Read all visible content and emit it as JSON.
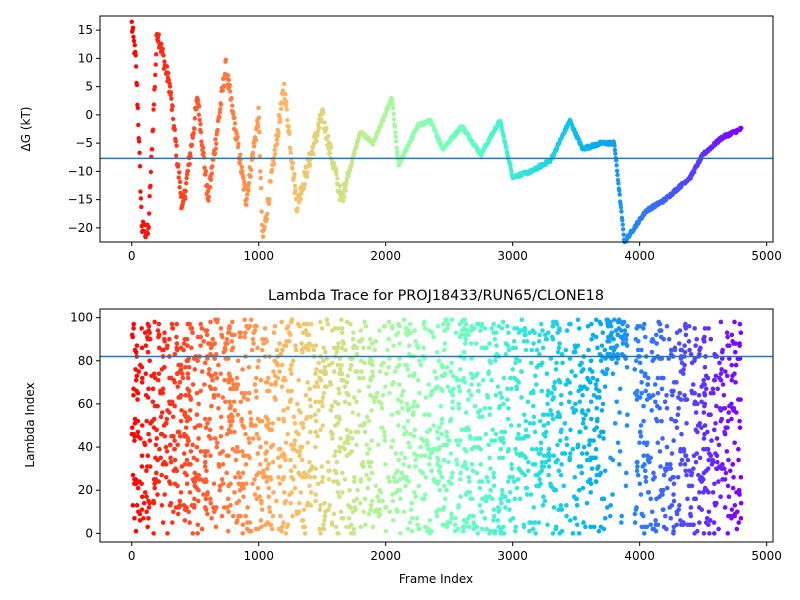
{
  "chart_data": [
    {
      "type": "scatter",
      "title": "",
      "xlabel": "",
      "ylabel": "ΔG (kT)",
      "xlim": [
        -250,
        5050
      ],
      "ylim": [
        -22.5,
        17.5
      ],
      "xticks": [
        "0",
        "1000",
        "2000",
        "3000",
        "4000",
        "5000"
      ],
      "yticks": [
        "−20",
        "−15",
        "−10",
        "−5",
        "0",
        "5",
        "10",
        "15"
      ],
      "hline": -7.7,
      "hline_color": "#1f77b4",
      "colormap": "rainbow (red at early frames → violet at late frames)",
      "grid": false,
      "series_points_approx": [
        {
          "x": 0,
          "y": 16
        },
        {
          "x": 30,
          "y": 10
        },
        {
          "x": 50,
          "y": 0
        },
        {
          "x": 80,
          "y": -20
        },
        {
          "x": 130,
          "y": -21
        },
        {
          "x": 200,
          "y": 15
        },
        {
          "x": 300,
          "y": 5
        },
        {
          "x": 400,
          "y": -17
        },
        {
          "x": 520,
          "y": 3
        },
        {
          "x": 600,
          "y": -15
        },
        {
          "x": 740,
          "y": 8.5
        },
        {
          "x": 900,
          "y": -15
        },
        {
          "x": 1000,
          "y": 0
        },
        {
          "x": 1030,
          "y": -22.5
        },
        {
          "x": 1200,
          "y": 5
        },
        {
          "x": 1300,
          "y": -16
        },
        {
          "x": 1500,
          "y": 0
        },
        {
          "x": 1650,
          "y": -15
        },
        {
          "x": 1800,
          "y": -3
        },
        {
          "x": 1900,
          "y": -5
        },
        {
          "x": 2050,
          "y": 3
        },
        {
          "x": 2100,
          "y": -9
        },
        {
          "x": 2250,
          "y": -2
        },
        {
          "x": 2350,
          "y": -1
        },
        {
          "x": 2450,
          "y": -6
        },
        {
          "x": 2600,
          "y": -2
        },
        {
          "x": 2750,
          "y": -7
        },
        {
          "x": 2900,
          "y": -1
        },
        {
          "x": 3000,
          "y": -11
        },
        {
          "x": 3150,
          "y": -10
        },
        {
          "x": 3300,
          "y": -8
        },
        {
          "x": 3450,
          "y": -1
        },
        {
          "x": 3550,
          "y": -6
        },
        {
          "x": 3700,
          "y": -5
        },
        {
          "x": 3800,
          "y": -5
        },
        {
          "x": 3880,
          "y": -22.5
        },
        {
          "x": 4050,
          "y": -17
        },
        {
          "x": 4200,
          "y": -15
        },
        {
          "x": 4400,
          "y": -11
        },
        {
          "x": 4500,
          "y": -7
        },
        {
          "x": 4650,
          "y": -4
        },
        {
          "x": 4800,
          "y": -2.5
        }
      ]
    },
    {
      "type": "scatter",
      "title": "Lambda Trace for PROJ18433/RUN65/CLONE18",
      "xlabel": "Frame Index",
      "ylabel": "Lambda Index",
      "xlim": [
        -250,
        5050
      ],
      "ylim": [
        -4,
        104
      ],
      "xticks": [
        "0",
        "1000",
        "2000",
        "3000",
        "4000",
        "5000"
      ],
      "yticks": [
        "0",
        "20",
        "40",
        "60",
        "80",
        "100"
      ],
      "hline": 82,
      "hline_color": "#1f77b4",
      "colormap": "rainbow (red at early frames → violet at late frames)",
      "grid": false,
      "note_points": "Dense scatter of lambda indices 0–99 across frames 0–4800; sparse gaps near frames 3900–3950; cluster near 80–99 around frames 3750–3900."
    }
  ]
}
